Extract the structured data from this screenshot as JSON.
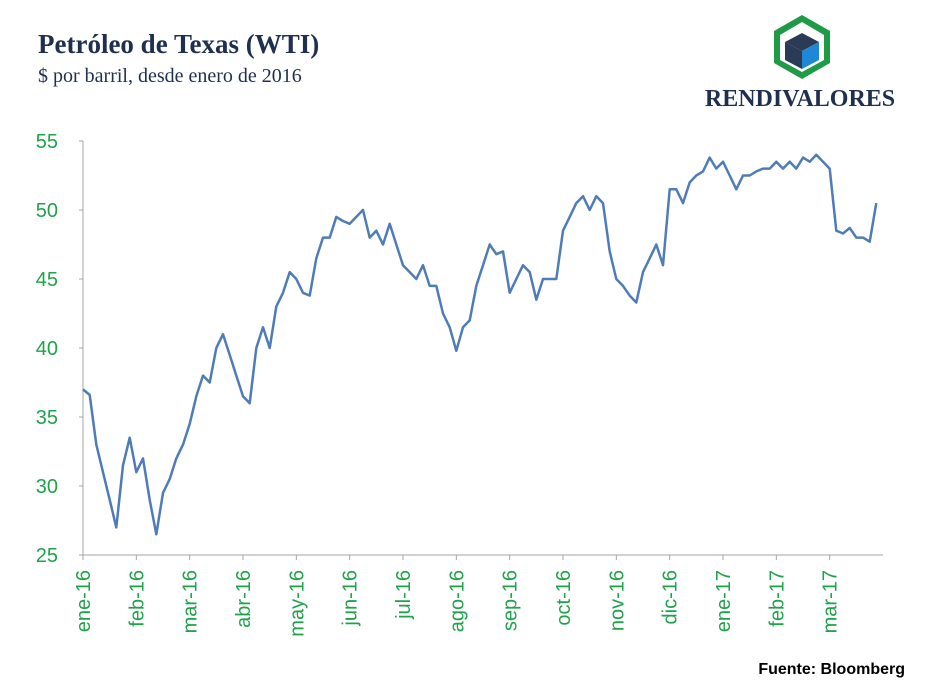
{
  "chart_data": {
    "type": "line",
    "title": "Petróleo de Texas (WTI)",
    "subtitle": "$ por barril, desde enero de 2016",
    "brand": "RENDIVALORES",
    "source": "Fuente: Bloomberg",
    "color": "#4f7cb8",
    "tick_color": "#1fa34a",
    "xlim": [
      0,
      120
    ],
    "xticks": [
      {
        "value": 0,
        "label": "ene-16"
      },
      {
        "value": 8,
        "label": "feb-16"
      },
      {
        "value": 16,
        "label": "mar-16"
      },
      {
        "value": 24,
        "label": "abr-16"
      },
      {
        "value": 32,
        "label": "may-16"
      },
      {
        "value": 40,
        "label": "jun-16"
      },
      {
        "value": 48,
        "label": "jul-16"
      },
      {
        "value": 56,
        "label": "ago-16"
      },
      {
        "value": 64,
        "label": "sep-16"
      },
      {
        "value": 72,
        "label": "oct-16"
      },
      {
        "value": 80,
        "label": "nov-16"
      },
      {
        "value": 88,
        "label": "dic-16"
      },
      {
        "value": 96,
        "label": "ene-17"
      },
      {
        "value": 104,
        "label": "feb-17"
      },
      {
        "value": 112,
        "label": "mar-17"
      }
    ],
    "ylim": [
      25,
      55
    ],
    "yticks": [
      25,
      30,
      35,
      40,
      45,
      50,
      55
    ],
    "values": [
      37,
      36.6,
      33,
      31,
      29,
      27,
      31.5,
      33.5,
      31,
      32,
      29,
      26.5,
      29.5,
      30.5,
      32,
      33,
      34.5,
      36.5,
      38,
      37.5,
      40,
      41,
      39.5,
      38,
      36.5,
      36,
      40,
      41.5,
      40,
      43,
      44,
      45.5,
      45,
      44,
      43.8,
      46.5,
      48,
      48,
      49.5,
      49.2,
      49,
      49.5,
      50,
      48,
      48.5,
      47.5,
      49,
      47.5,
      46,
      45.5,
      45,
      46,
      44.5,
      44.5,
      42.5,
      41.5,
      39.8,
      41.5,
      42,
      44.5,
      46,
      47.5,
      46.8,
      47,
      44,
      45,
      46,
      45.5,
      43.5,
      45,
      45,
      45,
      48.5,
      49.5,
      50.5,
      51,
      50,
      51,
      50.5,
      47,
      45,
      44.5,
      43.8,
      43.3,
      45.5,
      46.5,
      47.5,
      46,
      51.5,
      51.5,
      50.5,
      52,
      52.5,
      52.8,
      53.8,
      53,
      53.5,
      52.5,
      51.5,
      52.5,
      52.5,
      52.8,
      53,
      53,
      53.5,
      53,
      53.5,
      53,
      53.8,
      53.5,
      54,
      53.5,
      53,
      48.5,
      48.3,
      48.7,
      48,
      48,
      47.7,
      50.5
    ]
  }
}
